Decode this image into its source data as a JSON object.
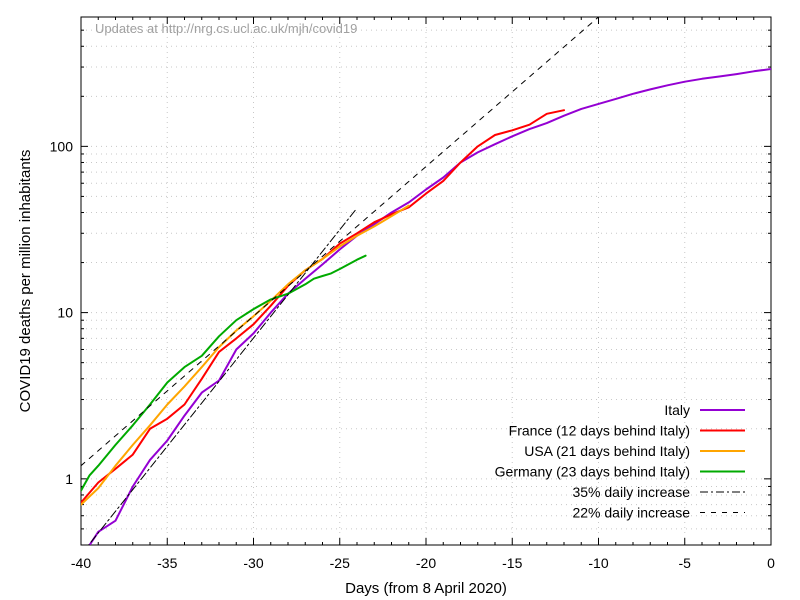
{
  "chart_data": {
    "type": "line",
    "title": "",
    "annotation": "Updates at http://nrg.cs.ucl.ac.uk/mjh/covid19",
    "xlabel": "Days (from 8 April 2020)",
    "ylabel": "COVID19 deaths per million inhabitants",
    "xlim": [
      -40,
      0
    ],
    "ylim": [
      0.4,
      600
    ],
    "yscale": "log",
    "grid": true,
    "legend_position": "bottom-right",
    "x_ticks": [
      -40,
      -35,
      -30,
      -25,
      -20,
      -15,
      -10,
      -5,
      0
    ],
    "y_ticks": [
      1,
      10,
      100
    ],
    "series": [
      {
        "name": "Italy",
        "color": "#9400d3",
        "style": "solid",
        "x": [
          -39.5,
          -39,
          -38,
          -37,
          -36,
          -35,
          -34,
          -33,
          -32,
          -31,
          -30,
          -29,
          -28,
          -27,
          -26,
          -25,
          -24,
          -23,
          -22,
          -21,
          -20,
          -19,
          -18,
          -17,
          -16,
          -15,
          -14,
          -13,
          -12,
          -11,
          -10,
          -9,
          -8,
          -7,
          -6,
          -5,
          -4,
          -3,
          -2,
          -1,
          0
        ],
        "y": [
          0.4,
          0.48,
          0.56,
          0.9,
          1.3,
          1.7,
          2.4,
          3.3,
          3.9,
          6.0,
          7.5,
          10.0,
          13.0,
          16.0,
          19.5,
          24.0,
          29.0,
          34.0,
          40.0,
          46.0,
          55.0,
          65.0,
          80.0,
          92.0,
          103.0,
          115.0,
          127.0,
          138.0,
          153.0,
          168.0,
          180.0,
          193.0,
          207.0,
          220.0,
          233.0,
          245.0,
          255.0,
          263.0,
          272.0,
          283.0,
          292.0
        ]
      },
      {
        "name": "France (12 days behind Italy)",
        "color": "#ff0000",
        "style": "solid",
        "x": [
          -40,
          -39,
          -38,
          -37,
          -36,
          -35,
          -34,
          -33,
          -32,
          -31,
          -30,
          -29,
          -28,
          -27,
          -26,
          -25,
          -24,
          -23,
          -22,
          -21,
          -20,
          -19,
          -18,
          -17,
          -16,
          -15,
          -14,
          -13,
          -12
        ],
        "y": [
          0.72,
          0.95,
          1.15,
          1.4,
          2.0,
          2.3,
          2.8,
          4.0,
          5.8,
          7.0,
          8.5,
          11.0,
          14.5,
          18.0,
          21.0,
          26.0,
          30.0,
          35.0,
          39.0,
          43.0,
          52.0,
          62.0,
          80.0,
          100.0,
          117.0,
          125.0,
          135.0,
          157.0,
          165.0
        ]
      },
      {
        "name": "USA (21 days behind Italy)",
        "color": "#ffa500",
        "style": "solid",
        "x": [
          -40,
          -39,
          -38,
          -37,
          -36,
          -35,
          -34,
          -33,
          -32,
          -31,
          -30,
          -29,
          -28,
          -27,
          -26,
          -25,
          -24,
          -23,
          -22,
          -21
        ],
        "y": [
          0.7,
          0.88,
          1.2,
          1.6,
          2.1,
          2.8,
          3.6,
          4.7,
          6.2,
          7.8,
          9.5,
          11.8,
          14.8,
          18.0,
          21.0,
          25.0,
          29.0,
          33.0,
          38.0,
          44.0
        ]
      },
      {
        "name": "Germany (23 days behind Italy)",
        "color": "#00aa00",
        "style": "solid",
        "x": [
          -40,
          -39.5,
          -39,
          -38,
          -37,
          -36,
          -35,
          -34,
          -33,
          -32,
          -31,
          -30,
          -29,
          -28,
          -27,
          -26.5,
          -26,
          -25.5,
          -25,
          -24.5,
          -24,
          -23.5
        ],
        "y": [
          0.85,
          1.05,
          1.2,
          1.6,
          2.1,
          2.8,
          3.8,
          4.7,
          5.5,
          7.2,
          9.0,
          10.5,
          12.0,
          13.0,
          14.8,
          16.0,
          16.6,
          17.2,
          18.3,
          19.5,
          20.8,
          22.0
        ]
      },
      {
        "name": "35% daily increase",
        "color": "#000000",
        "style": "dashdot",
        "x": [
          -40,
          -24
        ],
        "y": [
          0.35,
          42.5
        ]
      },
      {
        "name": "22% daily increase",
        "color": "#000000",
        "style": "dashed",
        "x": [
          -40,
          -10
        ],
        "y": [
          1.2,
          600
        ]
      }
    ]
  }
}
